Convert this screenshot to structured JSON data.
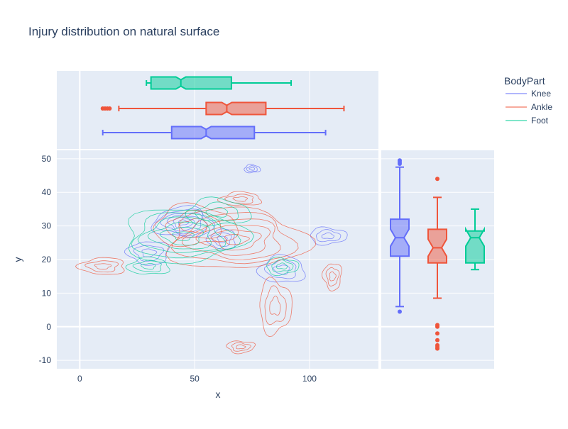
{
  "chart_data": {
    "type": "scatter",
    "subtype": "density-contour with marginal notched box plots",
    "title": "Injury distribution on natural surface",
    "xlabel": "x",
    "ylabel": "y",
    "xlim": [
      -10,
      130
    ],
    "ylim": [
      -12.5,
      52.5
    ],
    "x_ticks": [
      0,
      50,
      100
    ],
    "y_ticks": [
      -10,
      0,
      10,
      20,
      30,
      40,
      50
    ],
    "grid": true,
    "legend": {
      "title": "BodyPart",
      "placement": "top-right",
      "entries": [
        "Knee",
        "Ankle",
        "Foot"
      ]
    },
    "series": [
      {
        "name": "Knee",
        "color": "#636efa",
        "box_x": {
          "min": 10,
          "q1": 40,
          "median": 55,
          "q3": 76,
          "max": 107,
          "outliers": []
        },
        "box_y": {
          "min": 6,
          "q1": 21,
          "median": 26.5,
          "q3": 32,
          "max": 47.5,
          "outliers": [
            4.5,
            48.5,
            49,
            49.5
          ]
        },
        "contour_centers": [
          [
            45,
            31
          ],
          [
            30,
            22
          ],
          [
            62,
            26
          ],
          [
            88,
            17
          ],
          [
            75,
            47
          ],
          [
            108,
            27
          ]
        ]
      },
      {
        "name": "Ankle",
        "color": "#ef553b",
        "box_x": {
          "min": 17,
          "q1": 55,
          "median": 64,
          "q3": 81,
          "max": 115,
          "outliers": [
            10,
            11,
            12,
            13
          ]
        },
        "box_y": {
          "min": 8.5,
          "q1": 19,
          "median": 23.5,
          "q3": 29,
          "max": 38.5,
          "outliers": [
            44,
            0.5,
            0,
            -2,
            -4,
            -5.5,
            -6,
            -6.5
          ]
        },
        "contour_centers": [
          [
            68,
            26
          ],
          [
            10,
            18
          ],
          [
            70,
            38
          ],
          [
            50,
            30
          ],
          [
            85,
            6
          ],
          [
            70,
            -6
          ],
          [
            110,
            15
          ]
        ]
      },
      {
        "name": "Foot",
        "color": "#00cc96",
        "box_x": {
          "min": 29,
          "q1": 31,
          "median": 44,
          "q3": 66,
          "max": 92,
          "outliers": []
        },
        "box_y": {
          "min": 17,
          "q1": 19,
          "median": 26.5,
          "q3": 28.5,
          "max": 35,
          "outliers": []
        },
        "contour_centers": [
          [
            45,
            27
          ],
          [
            30,
            18
          ],
          [
            60,
            34
          ],
          [
            88,
            18
          ]
        ]
      }
    ]
  }
}
